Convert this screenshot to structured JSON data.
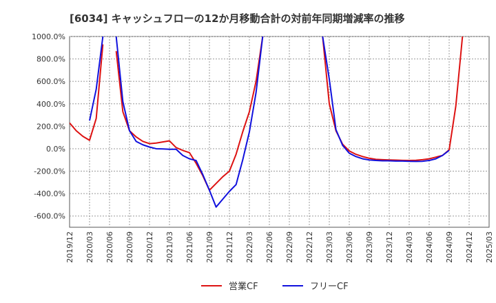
{
  "chart_data": {
    "type": "line",
    "title": "[6034]  キャッシュフローの12か月移動合計の対前年同期増減率の推移",
    "xlabel": "",
    "ylabel": "",
    "ylim": [
      -700,
      1000
    ],
    "yticks": [
      1000,
      800,
      600,
      400,
      200,
      0,
      -200,
      -400,
      -600
    ],
    "ytick_labels": [
      "1000.0%",
      "800.0%",
      "600.0%",
      "400.0%",
      "200.0%",
      "0.0%",
      "-200.0%",
      "-400.0%",
      "-600.0%"
    ],
    "x_tick_labels": [
      "2019/12",
      "2020/03",
      "2020/06",
      "2020/09",
      "2020/12",
      "2021/03",
      "2021/06",
      "2021/09",
      "2021/12",
      "2022/03",
      "2022/06",
      "2022/09",
      "2022/12",
      "2023/03",
      "2023/06",
      "2023/09",
      "2023/12",
      "2024/03",
      "2024/06",
      "2024/09",
      "2024/12",
      "2025/03"
    ],
    "x_unit": "month index from 2019/12",
    "series": [
      {
        "name": "営業CF",
        "color": "#dd1111",
        "points": [
          [
            0,
            230
          ],
          [
            1,
            160
          ],
          [
            2,
            110
          ],
          [
            3,
            75
          ],
          [
            4,
            270
          ],
          [
            5,
            930
          ],
          [
            null,
            null
          ],
          [
            7,
            870
          ],
          [
            8,
            330
          ],
          [
            9,
            160
          ],
          [
            10,
            105
          ],
          [
            11,
            65
          ],
          [
            12,
            45
          ],
          [
            13,
            50
          ],
          [
            14,
            60
          ],
          [
            15,
            70
          ],
          [
            16,
            10
          ],
          [
            17,
            -15
          ],
          [
            18,
            -35
          ],
          [
            19,
            -130
          ],
          [
            20,
            -240
          ],
          [
            21,
            -370
          ],
          [
            22,
            -310
          ],
          [
            23,
            -250
          ],
          [
            24,
            -200
          ],
          [
            25,
            -50
          ],
          [
            26,
            150
          ],
          [
            27,
            330
          ],
          [
            28,
            600
          ],
          [
            29,
            1000
          ],
          [
            null,
            null
          ],
          [
            38,
            1000
          ],
          [
            39,
            400
          ],
          [
            40,
            160
          ],
          [
            41,
            40
          ],
          [
            42,
            -20
          ],
          [
            43,
            -50
          ],
          [
            44,
            -70
          ],
          [
            45,
            -85
          ],
          [
            46,
            -95
          ],
          [
            47,
            -98
          ],
          [
            48,
            -100
          ],
          [
            49,
            -102
          ],
          [
            50,
            -104
          ],
          [
            51,
            -105
          ],
          [
            52,
            -103
          ],
          [
            53,
            -98
          ],
          [
            54,
            -90
          ],
          [
            55,
            -75
          ],
          [
            56,
            -60
          ],
          [
            57,
            -10
          ],
          [
            58,
            380
          ],
          [
            59,
            1000
          ]
        ]
      },
      {
        "name": "フリーCF",
        "color": "#1010dd",
        "points": [
          [
            3,
            250
          ],
          [
            4,
            530
          ],
          [
            5,
            1000
          ],
          [
            null,
            null
          ],
          [
            7,
            1000
          ],
          [
            8,
            420
          ],
          [
            9,
            160
          ],
          [
            10,
            65
          ],
          [
            11,
            35
          ],
          [
            12,
            15
          ],
          [
            13,
            0
          ],
          [
            14,
            -2
          ],
          [
            15,
            -5
          ],
          [
            16,
            -5
          ],
          [
            17,
            -60
          ],
          [
            18,
            -90
          ],
          [
            19,
            -105
          ],
          [
            20,
            -230
          ],
          [
            21,
            -370
          ],
          [
            22,
            -520
          ],
          [
            23,
            -450
          ],
          [
            24,
            -380
          ],
          [
            25,
            -320
          ],
          [
            26,
            -100
          ],
          [
            27,
            150
          ],
          [
            28,
            500
          ],
          [
            29,
            1000
          ],
          [
            null,
            null
          ],
          [
            38,
            1000
          ],
          [
            39,
            620
          ],
          [
            40,
            170
          ],
          [
            41,
            30
          ],
          [
            42,
            -40
          ],
          [
            43,
            -70
          ],
          [
            44,
            -90
          ],
          [
            45,
            -100
          ],
          [
            46,
            -105
          ],
          [
            47,
            -108
          ],
          [
            48,
            -108
          ],
          [
            49,
            -110
          ],
          [
            50,
            -110
          ],
          [
            51,
            -112
          ],
          [
            52,
            -113
          ],
          [
            53,
            -112
          ],
          [
            54,
            -105
          ],
          [
            55,
            -90
          ],
          [
            56,
            -60
          ],
          [
            57,
            -15
          ]
        ]
      }
    ],
    "legend": [
      "営業CF",
      "フリーCF"
    ],
    "legend_position": "bottom-center",
    "grid": true
  }
}
